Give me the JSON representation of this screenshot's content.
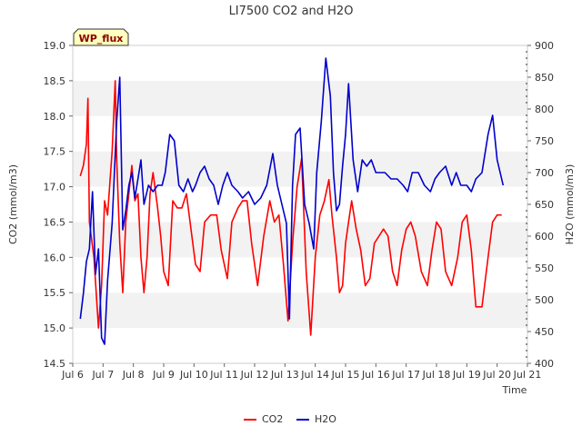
{
  "chart_data": {
    "type": "line",
    "title": "LI7500 CO2 and H2O",
    "xlabel": "Time",
    "ylabel_left": "CO2 (mmol/m3)",
    "ylabel_right": "H2O (mmol/m3)",
    "annotation": "WP_flux",
    "x_ticks": [
      "Jul 6",
      "Jul 7",
      "Jul 8",
      "Jul 9",
      "Jul 10",
      "Jul 11",
      "Jul 12",
      "Jul 13",
      "Jul 14",
      "Jul 15",
      "Jul 16",
      "Jul 17",
      "Jul 18",
      "Jul 19",
      "Jul 20",
      "Jul 21"
    ],
    "xlim": [
      6,
      21
    ],
    "ylim_left": [
      14.5,
      19.0
    ],
    "ylim_right": [
      400,
      900
    ],
    "y_ticks_left": [
      "14.5",
      "15.0",
      "15.5",
      "16.0",
      "16.5",
      "17.0",
      "17.5",
      "18.0",
      "18.5",
      "19.0"
    ],
    "y_ticks_right": [
      "400",
      "450",
      "500",
      "550",
      "600",
      "650",
      "700",
      "750",
      "800",
      "850",
      "900"
    ],
    "legend_position": "bottom-center",
    "grid": "horizontal alternating bands",
    "series": [
      {
        "name": "CO2",
        "axis": "left",
        "color": "#ff0000",
        "x": [
          6.25,
          6.35,
          6.45,
          6.5,
          6.55,
          6.7,
          6.85,
          6.95,
          7.05,
          7.15,
          7.3,
          7.4,
          7.45,
          7.55,
          7.65,
          7.75,
          7.85,
          7.95,
          8.05,
          8.15,
          8.25,
          8.35,
          8.45,
          8.55,
          8.65,
          8.8,
          8.9,
          9.0,
          9.15,
          9.3,
          9.45,
          9.6,
          9.75,
          9.9,
          10.05,
          10.2,
          10.35,
          10.55,
          10.75,
          10.9,
          11.1,
          11.25,
          11.45,
          11.6,
          11.75,
          11.9,
          12.1,
          12.3,
          12.5,
          12.65,
          12.8,
          12.95,
          13.1,
          13.25,
          13.4,
          13.55,
          13.7,
          13.85,
          14.0,
          14.15,
          14.3,
          14.45,
          14.55,
          14.7,
          14.8,
          14.9,
          15.0,
          15.1,
          15.2,
          15.35,
          15.5,
          15.65,
          15.8,
          15.95,
          16.1,
          16.25,
          16.4,
          16.55,
          16.7,
          16.85,
          17.0,
          17.15,
          17.3,
          17.5,
          17.7,
          17.85,
          18.0,
          18.15,
          18.3,
          18.5,
          18.7,
          18.85,
          19.0,
          19.15,
          19.3,
          19.5,
          19.7,
          19.85,
          20.0,
          20.15
        ],
        "values": [
          17.15,
          17.3,
          17.6,
          18.25,
          16.5,
          16.0,
          15.0,
          15.6,
          16.8,
          16.6,
          17.5,
          18.5,
          17.4,
          16.2,
          15.5,
          16.5,
          16.9,
          17.3,
          16.8,
          16.9,
          16.0,
          15.5,
          16.0,
          16.9,
          17.2,
          16.7,
          16.3,
          15.8,
          15.6,
          16.8,
          16.7,
          16.7,
          16.9,
          16.4,
          15.9,
          15.8,
          16.5,
          16.6,
          16.6,
          16.1,
          15.7,
          16.5,
          16.7,
          16.8,
          16.8,
          16.2,
          15.6,
          16.3,
          16.8,
          16.5,
          16.6,
          15.9,
          15.1,
          16.2,
          17.0,
          17.4,
          15.8,
          14.9,
          16.0,
          16.6,
          16.8,
          17.1,
          16.6,
          16.0,
          15.5,
          15.6,
          16.2,
          16.5,
          16.8,
          16.4,
          16.1,
          15.6,
          15.7,
          16.2,
          16.3,
          16.4,
          16.3,
          15.8,
          15.6,
          16.1,
          16.4,
          16.5,
          16.3,
          15.8,
          15.6,
          16.1,
          16.5,
          16.4,
          15.8,
          15.6,
          16.0,
          16.5,
          16.6,
          16.1,
          15.3,
          15.3,
          16.0,
          16.5,
          16.6,
          16.6
        ]
      },
      {
        "name": "H2O",
        "axis": "right",
        "color": "#0000cc",
        "x": [
          6.25,
          6.35,
          6.45,
          6.55,
          6.65,
          6.75,
          6.85,
          6.95,
          7.05,
          7.15,
          7.3,
          7.45,
          7.55,
          7.65,
          7.75,
          7.85,
          7.95,
          8.05,
          8.15,
          8.25,
          8.35,
          8.5,
          8.65,
          8.8,
          8.95,
          9.05,
          9.2,
          9.35,
          9.5,
          9.65,
          9.8,
          9.95,
          10.05,
          10.2,
          10.35,
          10.5,
          10.65,
          10.8,
          10.95,
          11.1,
          11.25,
          11.45,
          11.6,
          11.8,
          12.0,
          12.2,
          12.4,
          12.6,
          12.75,
          12.9,
          13.05,
          13.15,
          13.25,
          13.35,
          13.5,
          13.65,
          13.8,
          13.95,
          14.05,
          14.2,
          14.35,
          14.5,
          14.6,
          14.7,
          14.8,
          14.9,
          15.0,
          15.1,
          15.25,
          15.4,
          15.55,
          15.7,
          15.85,
          16.0,
          16.15,
          16.3,
          16.5,
          16.7,
          16.9,
          17.05,
          17.2,
          17.4,
          17.6,
          17.8,
          17.95,
          18.1,
          18.3,
          18.5,
          18.65,
          18.8,
          19.0,
          19.15,
          19.3,
          19.5,
          19.7,
          19.85,
          20.0,
          20.1,
          20.2
        ],
        "values": [
          470,
          510,
          560,
          580,
          670,
          540,
          580,
          440,
          430,
          530,
          620,
          780,
          850,
          610,
          640,
          680,
          700,
          660,
          690,
          720,
          650,
          680,
          670,
          680,
          680,
          700,
          760,
          750,
          680,
          670,
          690,
          670,
          680,
          700,
          710,
          690,
          680,
          650,
          680,
          700,
          680,
          670,
          660,
          670,
          650,
          660,
          680,
          730,
          680,
          650,
          620,
          470,
          680,
          760,
          770,
          650,
          620,
          580,
          700,
          780,
          880,
          820,
          700,
          640,
          650,
          710,
          760,
          840,
          720,
          670,
          720,
          710,
          720,
          700,
          700,
          700,
          690,
          690,
          680,
          670,
          700,
          700,
          680,
          670,
          690,
          700,
          710,
          680,
          700,
          680,
          680,
          670,
          690,
          700,
          760,
          790,
          720,
          700,
          680
        ]
      }
    ]
  }
}
